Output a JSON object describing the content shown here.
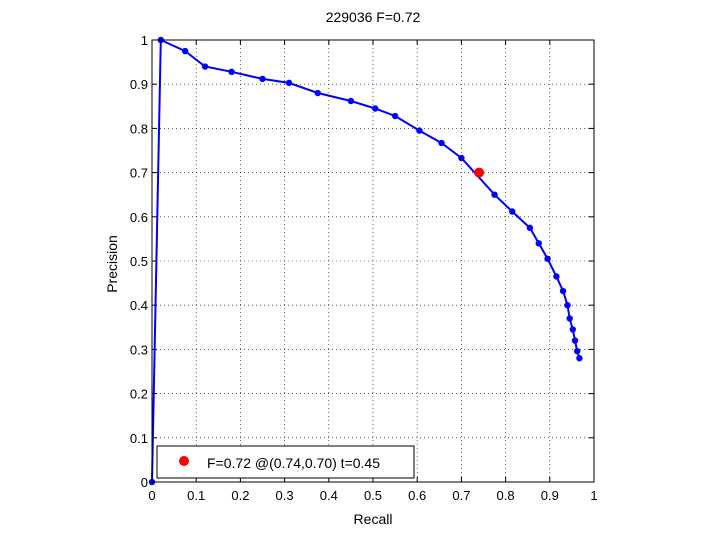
{
  "chart_data": {
    "type": "line",
    "title": "229036 F=0.72",
    "xlabel": "Recall",
    "ylabel": "Precision",
    "xlim": [
      0,
      1
    ],
    "ylim": [
      0,
      1
    ],
    "grid": true,
    "legend_position": "bottom-left",
    "xticks": [
      "0",
      "0.1",
      "0.2",
      "0.3",
      "0.4",
      "0.5",
      "0.6",
      "0.7",
      "0.8",
      "0.9",
      "1"
    ],
    "yticks": [
      "0",
      "0.1",
      "0.2",
      "0.3",
      "0.4",
      "0.5",
      "0.6",
      "0.7",
      "0.8",
      "0.9",
      "1"
    ],
    "series": [
      {
        "color": "#0000ff",
        "x": [
          0.0,
          0.02,
          0.075,
          0.12,
          0.18,
          0.25,
          0.31,
          0.375,
          0.45,
          0.505,
          0.55,
          0.605,
          0.655,
          0.7,
          0.775,
          0.815,
          0.855,
          0.875,
          0.895,
          0.915,
          0.93,
          0.94,
          0.945,
          0.952,
          0.957,
          0.962,
          0.967
        ],
        "y": [
          0.0,
          1.0,
          0.975,
          0.94,
          0.928,
          0.912,
          0.903,
          0.88,
          0.862,
          0.845,
          0.828,
          0.795,
          0.767,
          0.733,
          0.65,
          0.612,
          0.575,
          0.54,
          0.505,
          0.465,
          0.432,
          0.4,
          0.37,
          0.345,
          0.32,
          0.296,
          0.28
        ]
      }
    ],
    "best_point": {
      "x": 0.74,
      "y": 0.7,
      "color": "#ff0000",
      "label": "F=0.72 @(0.74,0.70) t=0.45"
    }
  }
}
